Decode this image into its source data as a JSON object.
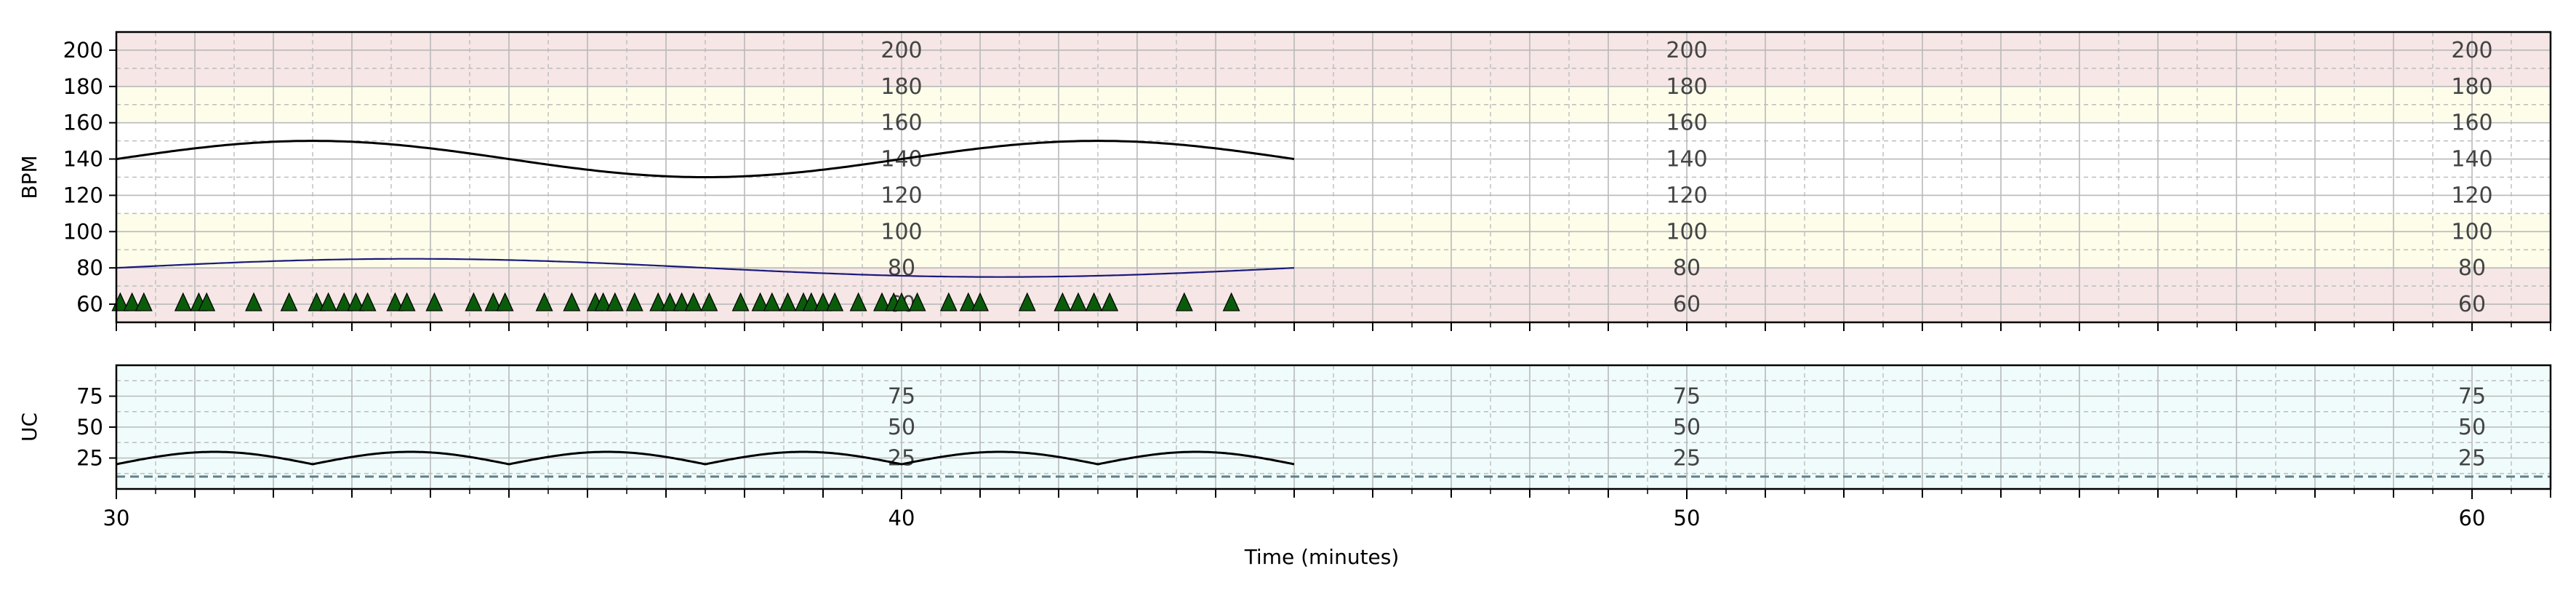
{
  "chart_data": [
    {
      "panel": "fhr",
      "type": "line",
      "ylabel": "BPM",
      "xlim": [
        30,
        61
      ],
      "ylim": [
        50,
        210
      ],
      "yticks": [
        60,
        80,
        100,
        120,
        140,
        160,
        180,
        200
      ],
      "inline_label_values": [
        "200",
        "180",
        "160",
        "140",
        "120",
        "100",
        "80",
        "60"
      ],
      "inline_label_x": [
        40,
        50,
        60
      ],
      "grid": true,
      "bands": [
        {
          "from": 50,
          "to": 80,
          "color": "#f6e6e6"
        },
        {
          "from": 80,
          "to": 110,
          "color": "#fdfdea"
        },
        {
          "from": 110,
          "to": 160,
          "color": "#ffffff"
        },
        {
          "from": 160,
          "to": 180,
          "color": "#fdfdea"
        },
        {
          "from": 180,
          "to": 210,
          "color": "#f6e6e6"
        }
      ],
      "series": [
        {
          "color": "#000000",
          "x_start": 30,
          "x_end": 45,
          "baseline": 140,
          "amplitude": 10,
          "period_min": 10,
          "phase_min": 30
        },
        {
          "color": "#1a1a7a",
          "x_start": 30,
          "x_end": 45,
          "baseline": 80,
          "amplitude": 5,
          "period_min": 15,
          "phase_min": 30
        }
      ],
      "markers": {
        "shape": "triangle-up",
        "color": "#0a5c0a",
        "y": 60,
        "x": [
          30.05,
          30.2,
          30.35,
          30.85,
          31.05,
          31.15,
          31.75,
          32.2,
          32.55,
          32.7,
          32.9,
          33.05,
          33.2,
          33.55,
          33.7,
          34.05,
          34.55,
          34.8,
          34.95,
          35.45,
          35.8,
          36.1,
          36.2,
          36.35,
          36.6,
          36.9,
          37.05,
          37.2,
          37.35,
          37.55,
          37.95,
          38.2,
          38.35,
          38.55,
          38.75,
          38.85,
          39.0,
          39.15,
          39.45,
          39.75,
          39.9,
          40.0,
          40.2,
          40.6,
          40.85,
          41.0,
          41.6,
          42.05,
          42.25,
          42.45,
          42.65,
          43.6,
          44.2
        ]
      }
    },
    {
      "panel": "uc",
      "type": "line",
      "ylabel": "UC",
      "xlabel": "Time (minutes)",
      "xlim": [
        30,
        61
      ],
      "ylim": [
        0,
        100
      ],
      "yticks": [
        25,
        50,
        75
      ],
      "xticks": [
        30,
        40,
        50,
        60
      ],
      "inline_label_values": [
        "75",
        "50",
        "25"
      ],
      "inline_label_x": [
        40,
        50,
        60
      ],
      "grid": true,
      "background": "#effcfb",
      "baseline_dashed_y": 10,
      "baseline_color": "#5f7f8a",
      "series": [
        {
          "color": "#000000",
          "x_start": 30,
          "x_end": 45,
          "base": 20,
          "peak": 30,
          "period_min": 2.5
        }
      ]
    }
  ]
}
